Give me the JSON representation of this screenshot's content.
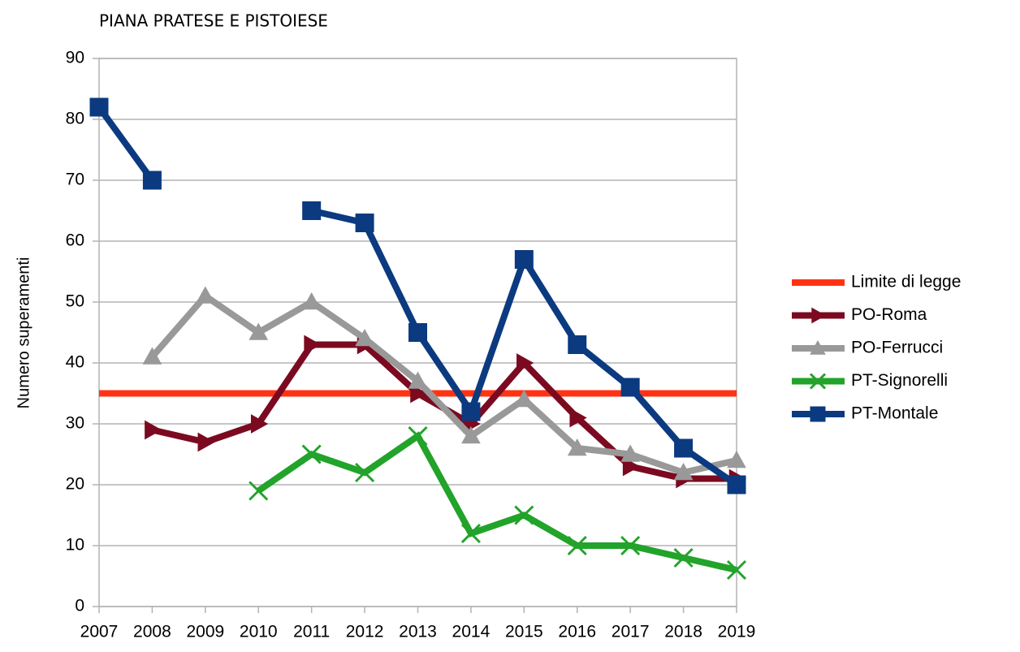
{
  "chart_data": {
    "type": "line",
    "title": "PIANA PRATESE E PISTOIESE",
    "y_label": "Numero superamenti",
    "categories": [
      "2007",
      "2008",
      "2009",
      "2010",
      "2011",
      "2012",
      "2013",
      "2014",
      "2015",
      "2016",
      "2017",
      "2018",
      "2019"
    ],
    "series": [
      {
        "name": "Limite di legge",
        "color": "#ff3314",
        "marker": "none",
        "values": [
          35,
          35,
          35,
          35,
          35,
          35,
          35,
          35,
          35,
          35,
          35,
          35,
          35
        ]
      },
      {
        "name": "PO-Roma",
        "color": "#7b0a20",
        "marker": "triangle-right",
        "values": [
          null,
          29,
          27,
          30,
          43,
          43,
          35,
          30,
          40,
          31,
          23,
          21,
          21
        ]
      },
      {
        "name": "PO-Ferrucci",
        "color": "#999999",
        "marker": "triangle",
        "values": [
          null,
          41,
          51,
          45,
          50,
          44,
          37,
          28,
          34,
          26,
          25,
          22,
          24
        ]
      },
      {
        "name": "PT-Signorelli",
        "color": "#22a32a",
        "marker": "x",
        "values": [
          null,
          null,
          null,
          19,
          25,
          22,
          28,
          12,
          15,
          10,
          10,
          8,
          6
        ]
      },
      {
        "name": "PT-Montale",
        "color": "#0b3a80",
        "marker": "square",
        "values": [
          82,
          70,
          null,
          null,
          65,
          63,
          45,
          32,
          57,
          43,
          36,
          26,
          20
        ]
      }
    ],
    "ylim": [
      0,
      90
    ],
    "yticks": [
      0,
      10,
      20,
      30,
      40,
      50,
      60,
      70,
      80,
      90
    ],
    "grid": true,
    "legend": "right"
  }
}
